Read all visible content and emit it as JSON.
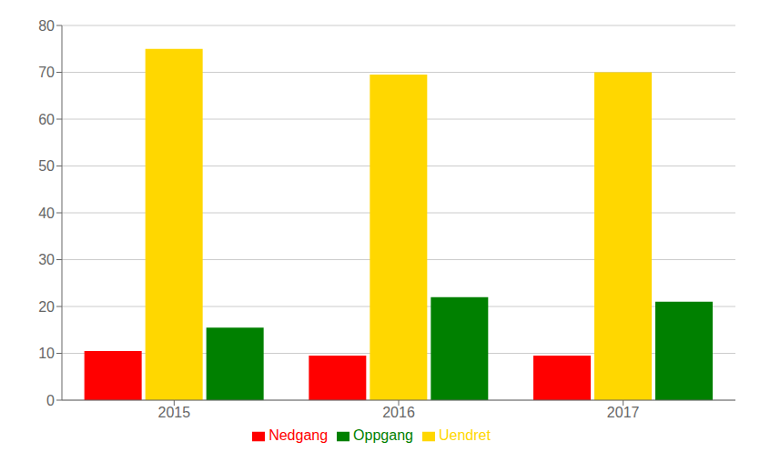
{
  "chart_data": {
    "type": "bar",
    "categories": [
      "2015",
      "2016",
      "2017"
    ],
    "series": [
      {
        "name": "Nedgang",
        "color": "#FF0000",
        "values": [
          10.5,
          9.5,
          9.5
        ]
      },
      {
        "name": "Uendret",
        "color": "#FFD700",
        "values": [
          75.0,
          69.5,
          70.0
        ]
      },
      {
        "name": "Oppgang",
        "color": "#008000",
        "values": [
          15.5,
          22.0,
          21.0
        ]
      }
    ],
    "ylim": [
      0,
      80
    ],
    "yticks": [
      0,
      10,
      20,
      30,
      40,
      50,
      60,
      70,
      80
    ],
    "grid": true,
    "legend": "bottom"
  }
}
